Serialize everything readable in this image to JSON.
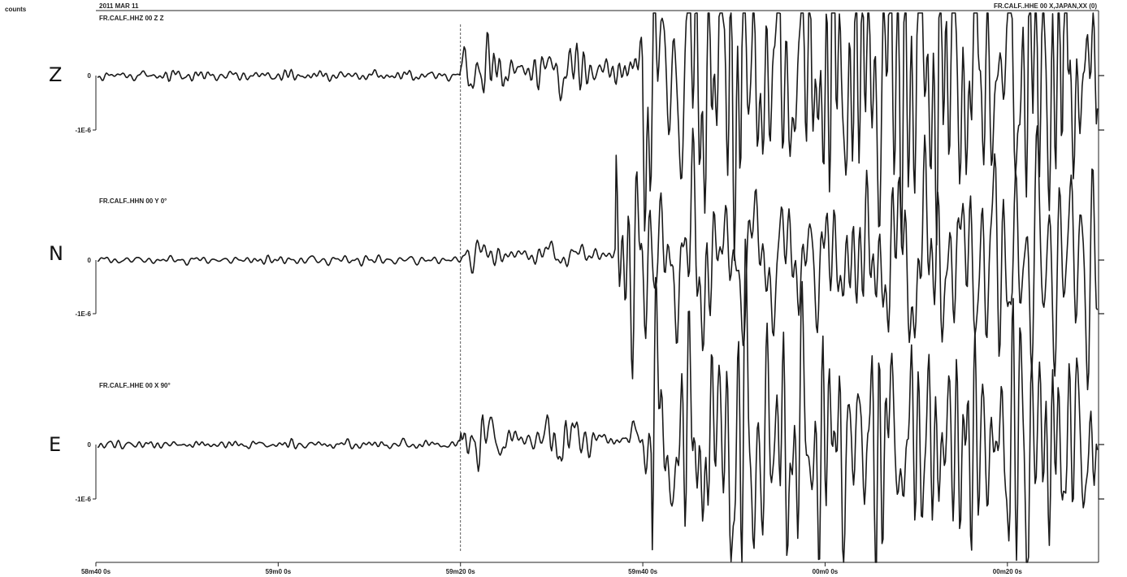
{
  "chart_data": {
    "type": "line",
    "title": "2011 MAR 11",
    "ylabel": "counts",
    "header_right": "FR.CALF..HHE 00 X,JAPAN,XX (0)",
    "xlabel": "",
    "x_ticks": [
      "58m40 0s",
      "59m0 0s",
      "59m20 0s",
      "59m40 0s",
      "00m0 0s",
      "00m20 0s"
    ],
    "x_tick_seconds": [
      40,
      60,
      80,
      100,
      120,
      140
    ],
    "xlim_seconds": [
      40,
      150
    ],
    "marker_seconds": 80,
    "series": [
      {
        "name": "FR.CALF..HHZ 00 Z Z",
        "component": "Z",
        "y_ticks": [
          "0",
          "-1E-6"
        ],
        "onset_seconds": 80,
        "strong_seconds": 100,
        "noise_amp": 0.12,
        "p_amp": 0.9,
        "s_amp": 3.5
      },
      {
        "name": "FR.CALF..HHN 00 Y 0°",
        "component": "N",
        "y_ticks": [
          "0",
          "-1E-6"
        ],
        "onset_seconds": 80,
        "strong_seconds": 97,
        "noise_amp": 0.1,
        "p_amp": 0.6,
        "s_amp": 3.0
      },
      {
        "name": "FR.CALF..HHE 00 X 90°",
        "component": "E",
        "y_ticks": [
          "0",
          "-1E-6"
        ],
        "onset_seconds": 80,
        "strong_seconds": 101,
        "noise_amp": 0.1,
        "p_amp": 0.7,
        "s_amp": 3.2
      }
    ]
  }
}
